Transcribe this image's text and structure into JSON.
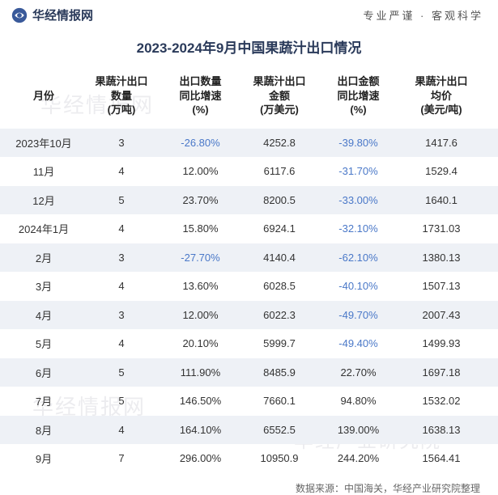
{
  "header": {
    "brand": "华经情报网",
    "slogan": "专业严谨 · 客观科学"
  },
  "title": "2023-2024年9月中国果蔬汁出口情况",
  "watermarks": {
    "wm1": "华经情报网",
    "wm2": "华经情报网",
    "wm3": "华经情报网",
    "wm4": "华经产业研究院"
  },
  "columns": [
    "月份",
    "果蔬汁出口\n数量\n(万吨)",
    "出口数量\n同比增速\n(%)",
    "果蔬汁出口\n金额\n(万美元)",
    "出口金额\n同比增速\n(%)",
    "果蔬汁出口\n均价\n(美元/吨)"
  ],
  "rows": [
    {
      "month": "2023年10月",
      "qty": "3",
      "qty_yoy": "-26.80%",
      "qty_neg": true,
      "amt": "4252.8",
      "amt_yoy": "-39.80%",
      "amt_neg": true,
      "price": "1417.6"
    },
    {
      "month": "11月",
      "qty": "4",
      "qty_yoy": "12.00%",
      "qty_neg": false,
      "amt": "6117.6",
      "amt_yoy": "-31.70%",
      "amt_neg": true,
      "price": "1529.4"
    },
    {
      "month": "12月",
      "qty": "5",
      "qty_yoy": "23.70%",
      "qty_neg": false,
      "amt": "8200.5",
      "amt_yoy": "-33.00%",
      "amt_neg": true,
      "price": "1640.1"
    },
    {
      "month": "2024年1月",
      "qty": "4",
      "qty_yoy": "15.80%",
      "qty_neg": false,
      "amt": "6924.1",
      "amt_yoy": "-32.10%",
      "amt_neg": true,
      "price": "1731.03"
    },
    {
      "month": "2月",
      "qty": "3",
      "qty_yoy": "-27.70%",
      "qty_neg": true,
      "amt": "4140.4",
      "amt_yoy": "-62.10%",
      "amt_neg": true,
      "price": "1380.13"
    },
    {
      "month": "3月",
      "qty": "4",
      "qty_yoy": "13.60%",
      "qty_neg": false,
      "amt": "6028.5",
      "amt_yoy": "-40.10%",
      "amt_neg": true,
      "price": "1507.13"
    },
    {
      "month": "4月",
      "qty": "3",
      "qty_yoy": "12.00%",
      "qty_neg": false,
      "amt": "6022.3",
      "amt_yoy": "-49.70%",
      "amt_neg": true,
      "price": "2007.43"
    },
    {
      "month": "5月",
      "qty": "4",
      "qty_yoy": "20.10%",
      "qty_neg": false,
      "amt": "5999.7",
      "amt_yoy": "-49.40%",
      "amt_neg": true,
      "price": "1499.93"
    },
    {
      "month": "6月",
      "qty": "5",
      "qty_yoy": "111.90%",
      "qty_neg": false,
      "amt": "8485.9",
      "amt_yoy": "22.70%",
      "amt_neg": false,
      "price": "1697.18"
    },
    {
      "month": "7月",
      "qty": "5",
      "qty_yoy": "146.50%",
      "qty_neg": false,
      "amt": "7660.1",
      "amt_yoy": "94.80%",
      "amt_neg": false,
      "price": "1532.02"
    },
    {
      "month": "8月",
      "qty": "4",
      "qty_yoy": "164.10%",
      "qty_neg": false,
      "amt": "6552.5",
      "amt_yoy": "139.00%",
      "amt_neg": false,
      "price": "1638.13"
    },
    {
      "month": "9月",
      "qty": "7",
      "qty_yoy": "296.00%",
      "qty_neg": false,
      "amt": "10950.9",
      "amt_yoy": "244.20%",
      "amt_neg": false,
      "price": "1564.41"
    }
  ],
  "source": "数据来源：中国海关，华经产业研究院整理",
  "style": {
    "stripe_color": "#eef1f6",
    "negative_color": "#4a78c8",
    "text_color": "#333333",
    "header_text_color": "#222222",
    "title_color": "#2a3a5a"
  }
}
